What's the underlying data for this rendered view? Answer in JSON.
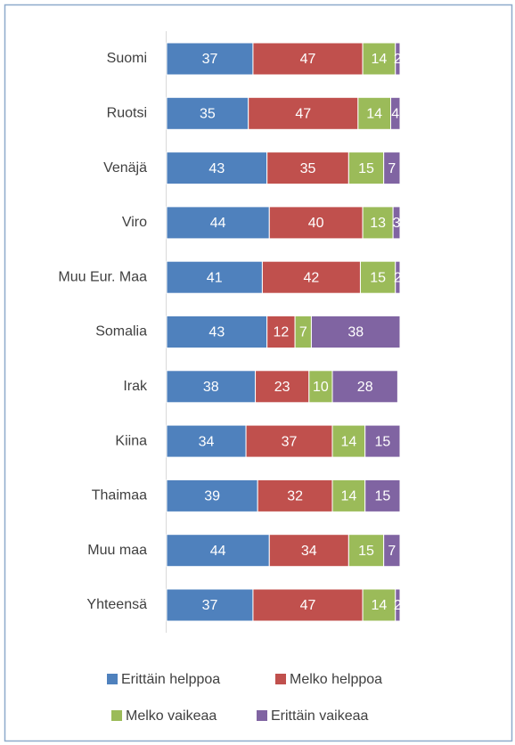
{
  "chart_data": {
    "type": "bar",
    "orientation": "horizontal",
    "stacked": true,
    "categories": [
      "Suomi",
      "Ruotsi",
      "Venäjä",
      "Viro",
      "Muu Eur. Maa",
      "Somalia",
      "Irak",
      "Kiina",
      "Thaimaa",
      "Muu maa",
      "Yhteensä"
    ],
    "series": [
      {
        "name": "Erittäin helppoa",
        "color": "#4f81bd",
        "values": [
          37,
          35,
          43,
          44,
          41,
          43,
          38,
          34,
          39,
          44,
          37
        ]
      },
      {
        "name": "Melko helppoa",
        "color": "#c0504d",
        "values": [
          47,
          47,
          35,
          40,
          42,
          12,
          23,
          37,
          32,
          34,
          47
        ]
      },
      {
        "name": "Melko vaikeaa",
        "color": "#9bbb59",
        "values": [
          14,
          14,
          15,
          13,
          15,
          7,
          10,
          14,
          14,
          15,
          14
        ]
      },
      {
        "name": "Erittäin vaikeaa",
        "color": "#8064a2",
        "values": [
          2,
          4,
          7,
          3,
          2,
          38,
          28,
          15,
          15,
          7,
          2
        ]
      }
    ],
    "xlim": [
      0,
      100
    ],
    "legend": "bottom"
  }
}
